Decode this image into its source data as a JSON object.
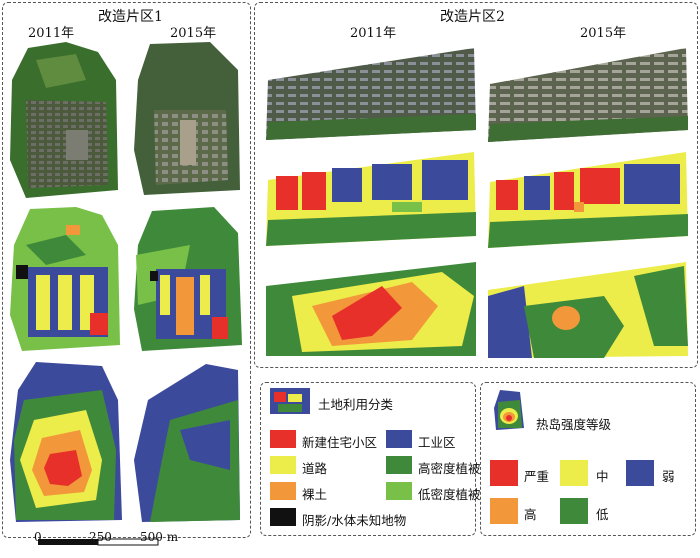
{
  "region1": {
    "title": "改造片区1",
    "years": [
      "2011年",
      "2015年"
    ]
  },
  "region2": {
    "title": "改造片区2",
    "years": [
      "2011年",
      "2015年"
    ]
  },
  "landuse_legend": {
    "title": "土地利用分类",
    "items": [
      {
        "label": "新建住宅小区",
        "color": "#e8302a"
      },
      {
        "label": "工业区",
        "color": "#3c4a9c"
      },
      {
        "label": "道路",
        "color": "#ecec4a"
      },
      {
        "label": "高密度植被",
        "color": "#3f8a3a"
      },
      {
        "label": "裸土",
        "color": "#f2973a"
      },
      {
        "label": "低密度植被",
        "color": "#78c048"
      },
      {
        "label": "阴影/水体未知地物",
        "color": "#111111"
      }
    ]
  },
  "heat_legend": {
    "title": "热岛强度等级",
    "items": [
      {
        "label": "严重",
        "color": "#e8302a"
      },
      {
        "label": "中",
        "color": "#ecec4a"
      },
      {
        "label": "弱",
        "color": "#3c4a9c"
      },
      {
        "label": "高",
        "color": "#f2973a"
      },
      {
        "label": "低",
        "color": "#3f8a3a"
      }
    ]
  },
  "scalebar": {
    "labels": [
      "0",
      "250",
      "500 m"
    ]
  },
  "colors": {
    "severe": "#e8302a",
    "high": "#f2973a",
    "medium": "#ecec4a",
    "low": "#3f8a3a",
    "weak": "#3c4a9c",
    "lowveg": "#78c048",
    "shadow": "#111111",
    "imagery_dark": "#3d4a32",
    "imagery_light": "#8a8f7e"
  }
}
